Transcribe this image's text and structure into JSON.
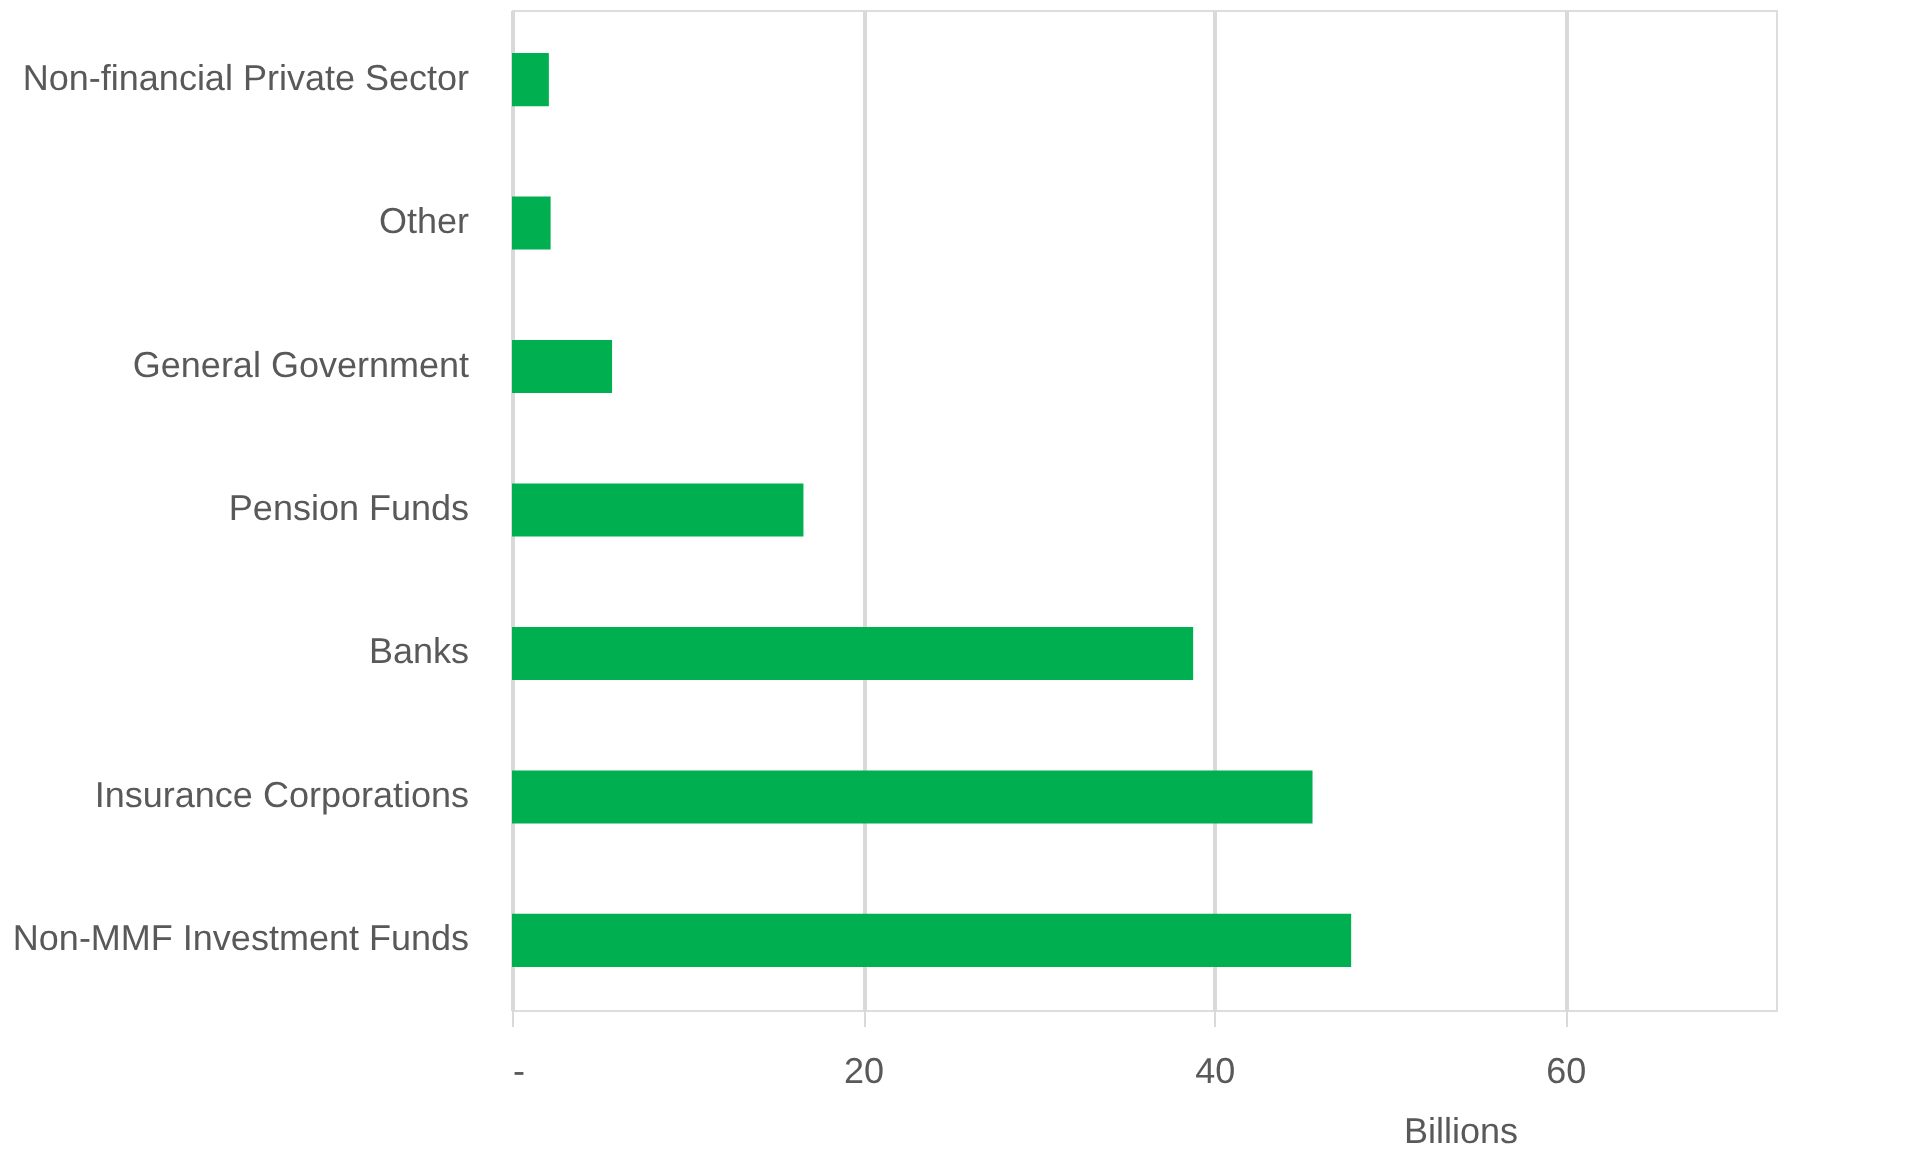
{
  "chart_data": {
    "type": "bar",
    "orientation": "horizontal",
    "xlabel": "Billions",
    "categories": [
      "Non-financial Private Sector",
      "Other",
      "General Government",
      "Pension Funds",
      "Banks",
      "Insurance Corporations",
      "Non-MMF Investment Funds"
    ],
    "values": [
      2.1,
      2.2,
      5.7,
      16.6,
      38.8,
      45.6,
      47.8
    ],
    "color": "#00b050",
    "xlim": [
      0,
      72
    ],
    "xticks": [
      {
        "value": 0,
        "label": "-"
      },
      20,
      40,
      60
    ],
    "grid": "x"
  }
}
